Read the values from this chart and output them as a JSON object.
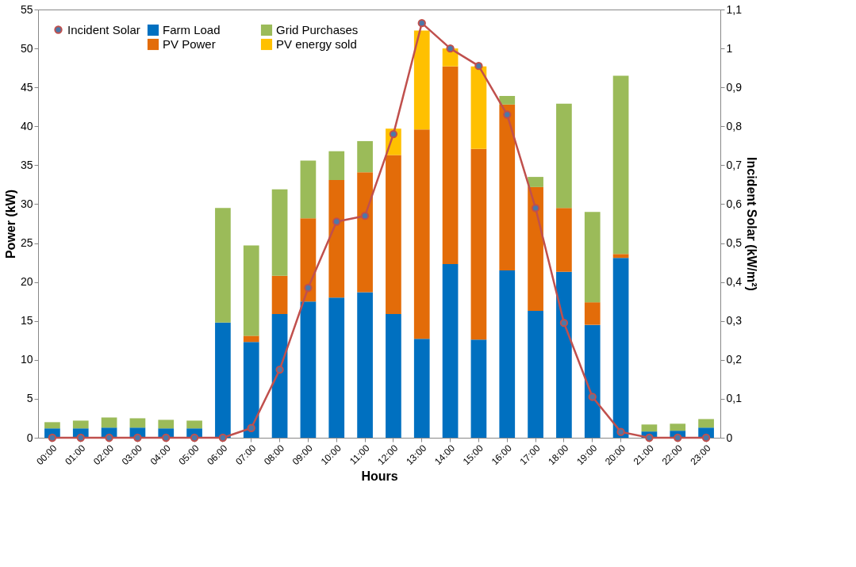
{
  "chart_data": {
    "type": "bar",
    "stacked": true,
    "xlabel": "Hours",
    "ylabel": "Power (kW)",
    "y2label": "Incident Solar (kW/m²)",
    "categories": [
      "00:00",
      "01:00",
      "02:00",
      "03:00",
      "04:00",
      "05:00",
      "06:00",
      "07:00",
      "08:00",
      "09:00",
      "10:00",
      "11:00",
      "12:00",
      "13:00",
      "14:00",
      "15:00",
      "16:00",
      "17:00",
      "18:00",
      "19:00",
      "20:00",
      "21:00",
      "22:00",
      "23:00"
    ],
    "series": [
      {
        "name": "Farm Load",
        "color": "#0070c0",
        "values": [
          1.2,
          1.2,
          1.3,
          1.3,
          1.2,
          1.2,
          14.8,
          12.3,
          15.9,
          17.5,
          18.0,
          18.7,
          15.9,
          12.7,
          22.3,
          12.6,
          21.5,
          16.3,
          21.3,
          14.5,
          23.1,
          0.8,
          0.9,
          1.3
        ]
      },
      {
        "name": "PV Power",
        "color": "#e36c09",
        "values": [
          null,
          null,
          null,
          null,
          null,
          null,
          null,
          0.8,
          4.9,
          10.7,
          15.1,
          15.4,
          20.4,
          26.9,
          25.4,
          24.5,
          21.3,
          15.9,
          8.2,
          2.9,
          0.5,
          null,
          null,
          null
        ]
      },
      {
        "name": "Grid Purchases",
        "color": "#9bbb59",
        "values": [
          0.8,
          1.0,
          1.3,
          1.2,
          1.1,
          1.0,
          14.7,
          11.6,
          11.1,
          7.4,
          3.7,
          4.0,
          null,
          null,
          null,
          null,
          1.1,
          1.3,
          13.4,
          11.6,
          22.9,
          0.9,
          0.9,
          1.1
        ]
      },
      {
        "name": "PV energy sold",
        "color": "#ffc000",
        "values": [
          null,
          null,
          null,
          null,
          null,
          null,
          null,
          null,
          null,
          null,
          null,
          null,
          3.4,
          12.7,
          2.3,
          10.6,
          null,
          null,
          null,
          null,
          null,
          null,
          null,
          null
        ]
      },
      {
        "name": "Incident Solar",
        "color": "#c0504d",
        "type": "line",
        "axis": "y2",
        "marker": "circle",
        "values": [
          0,
          0,
          0,
          0,
          0,
          0,
          0,
          0.025,
          0.175,
          0.385,
          0.555,
          0.57,
          0.78,
          1.065,
          1.0,
          0.955,
          0.83,
          0.59,
          0.295,
          0.105,
          0.015,
          0,
          0,
          0
        ]
      }
    ],
    "ylim": [
      0,
      55
    ],
    "yticks": [
      0,
      5,
      10,
      15,
      20,
      25,
      30,
      35,
      40,
      45,
      50,
      55
    ],
    "y2lim": [
      0,
      1.1
    ],
    "y2ticks": [
      0,
      {
        "value": 0.1,
        "label": "0,1"
      },
      {
        "value": 0.2,
        "label": "0,2"
      },
      {
        "value": 0.3,
        "label": "0,3"
      },
      {
        "value": 0.4,
        "label": "0,4"
      },
      {
        "value": 0.5,
        "label": "0,5"
      },
      {
        "value": 0.6,
        "label": "0,6"
      },
      {
        "value": 0.7,
        "label": "0,7"
      },
      {
        "value": 0.8,
        "label": "0,8"
      },
      {
        "value": 0.9,
        "label": "0,9"
      },
      1,
      {
        "value": 1.1,
        "label": "1,1"
      }
    ],
    "grid": false,
    "legend": "top left"
  }
}
